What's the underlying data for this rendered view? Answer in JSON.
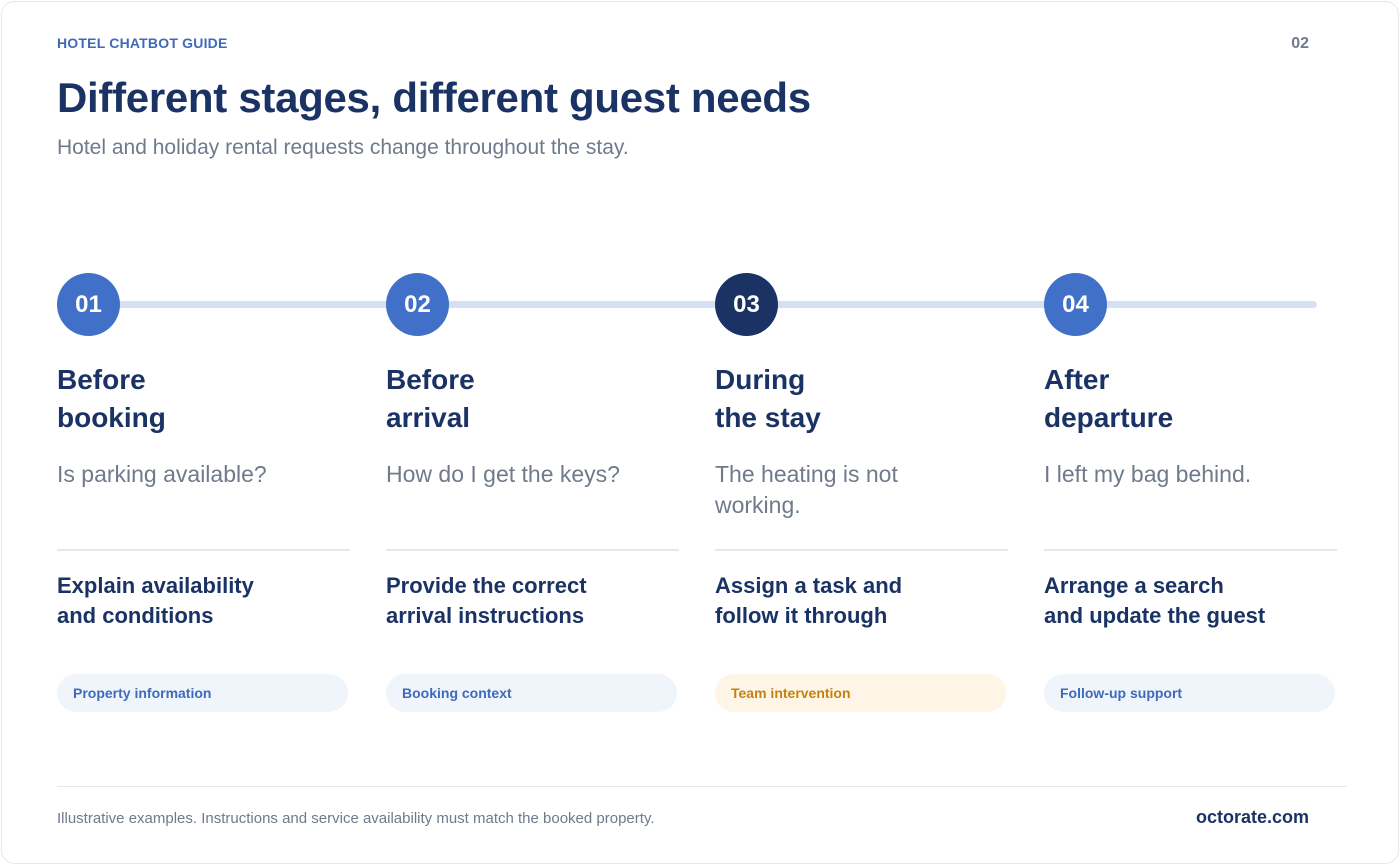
{
  "header": {
    "eyebrow": "HOTEL CHATBOT GUIDE",
    "page_number": "02",
    "title": "Different stages, different guest needs",
    "subtitle": "Hotel and holiday rental requests change throughout the stay."
  },
  "stages": [
    {
      "number": "01",
      "title": "Before\nbooking",
      "question": "Is parking available?",
      "action": "Explain availability\nand conditions",
      "tag": "Property information",
      "highlighted": false
    },
    {
      "number": "02",
      "title": "Before\narrival",
      "question": "How do I get the keys?",
      "action": "Provide the correct\narrival instructions",
      "tag": "Booking context",
      "highlighted": false
    },
    {
      "number": "03",
      "title": "During\nthe stay",
      "question": "The heating is not working.",
      "action": "Assign a task and\nfollow it through",
      "tag": "Team intervention",
      "highlighted": true
    },
    {
      "number": "04",
      "title": "After\ndeparture",
      "question": "I left my bag behind.",
      "action": "Arrange a search\nand update the guest",
      "tag": "Follow-up support",
      "highlighted": false
    }
  ],
  "footer": {
    "note": "Illustrative examples. Instructions and service availability must match the booked property.",
    "brand": "octorate.com"
  },
  "colors": {
    "primary": "#4170c8",
    "dark": "#1a3364",
    "muted": "#6f7a8b",
    "track": "#d5e0f4",
    "warning": "#c48311"
  }
}
